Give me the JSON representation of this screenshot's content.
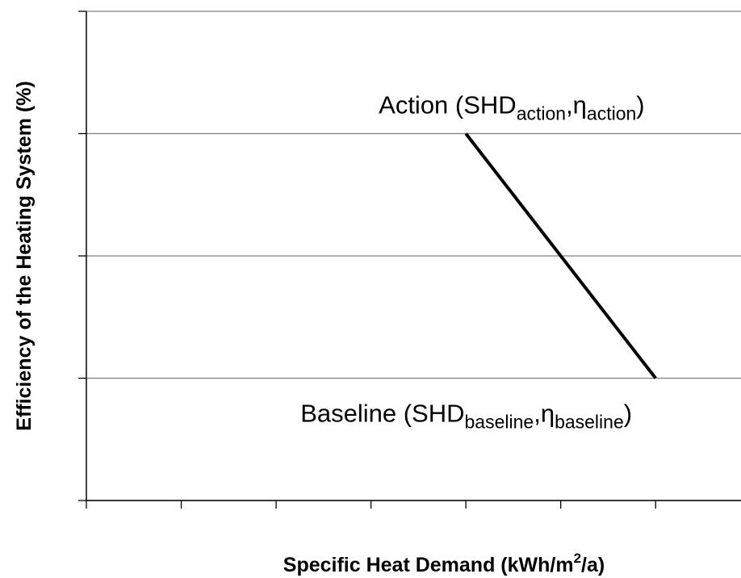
{
  "chart_data": {
    "type": "line",
    "x_label": [
      "Specific Heat Demand (kWh/m",
      "2",
      "/a)"
    ],
    "y_label": "Efficiency of the Heating System (%)",
    "annotations": [
      {
        "parts": [
          "Action (SHD",
          "action",
          ",η",
          "action",
          ")"
        ],
        "x": 4,
        "y": 3
      },
      {
        "parts": [
          "Baseline  (SHD",
          "baseline",
          ",η",
          "baseline",
          ")"
        ],
        "x": 6,
        "y": 1
      }
    ],
    "x": [
      4,
      6
    ],
    "series": [
      {
        "color": "#000000",
        "values": [
          3,
          1
        ]
      }
    ],
    "xlim": [
      0,
      6.9
    ],
    "xticks": [
      0,
      1,
      2,
      3,
      4,
      5,
      6
    ],
    "ylim": [
      0,
      4
    ],
    "yticks": [
      0,
      1,
      2,
      3,
      4
    ],
    "grid": true
  }
}
